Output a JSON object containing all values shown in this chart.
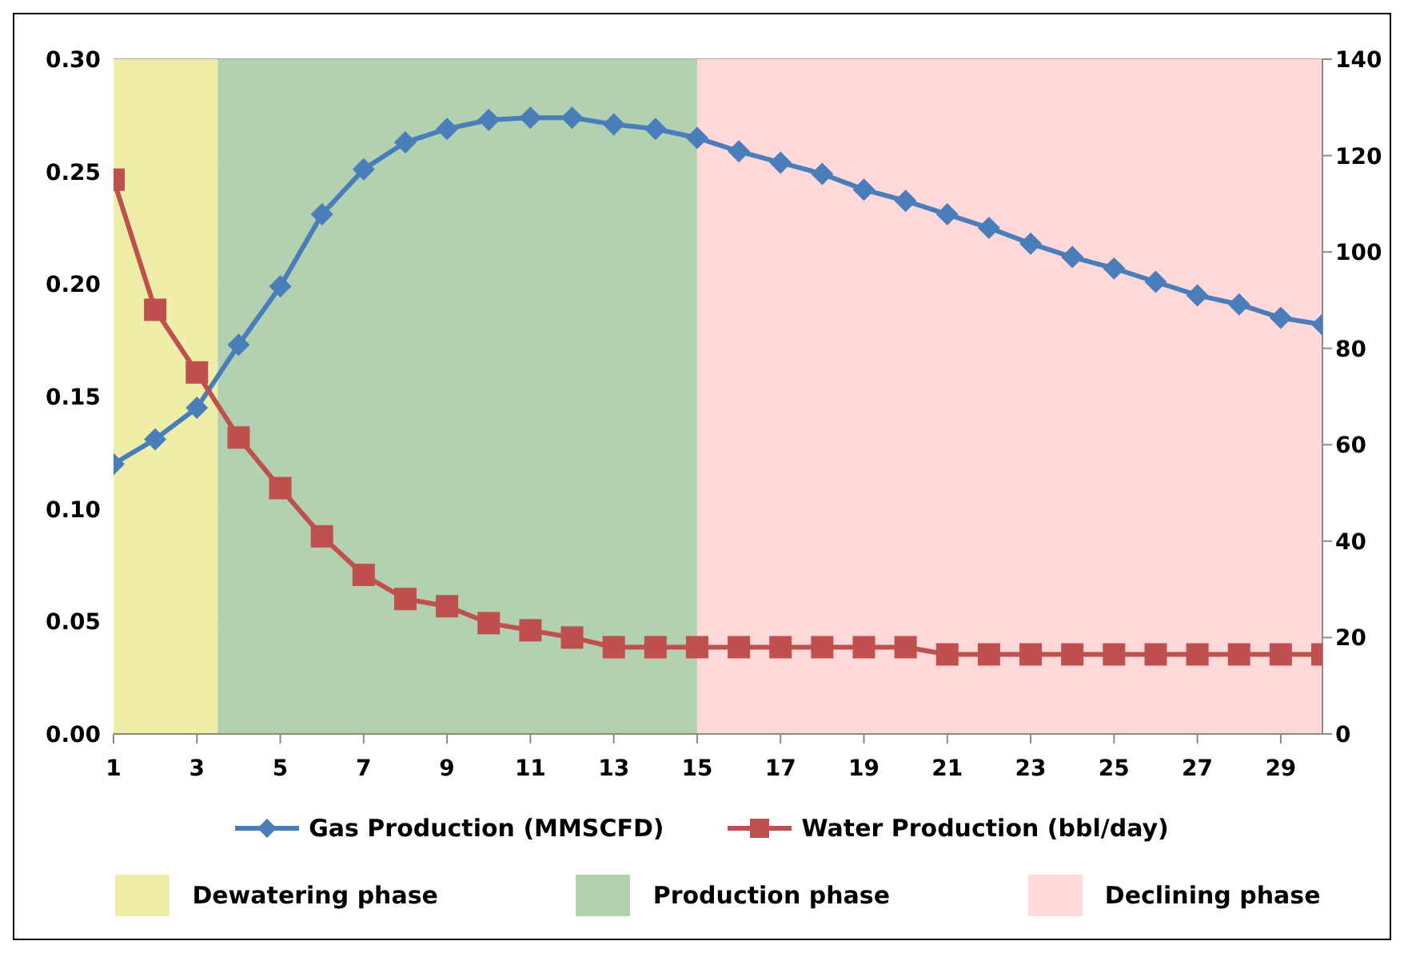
{
  "chart_data": {
    "type": "line",
    "x": [
      1,
      2,
      3,
      4,
      5,
      6,
      7,
      8,
      9,
      10,
      11,
      12,
      13,
      14,
      15,
      16,
      17,
      18,
      19,
      20,
      21,
      22,
      23,
      24,
      25,
      26,
      27,
      28,
      29,
      30
    ],
    "series": [
      {
        "name": "Gas Production (MMSCFD)",
        "color": "#4a7ebb",
        "marker": "diamond",
        "values": [
          0.12,
          0.131,
          0.145,
          0.173,
          0.199,
          0.231,
          0.251,
          0.263,
          0.269,
          0.273,
          0.274,
          0.274,
          0.271,
          0.269,
          0.265,
          0.259,
          0.254,
          0.249,
          0.242,
          0.237,
          0.231,
          0.225,
          0.218,
          0.212,
          0.207,
          0.201,
          0.195,
          0.191,
          0.185,
          0.182
        ]
      },
      {
        "name": "Water Production (bbl/day)",
        "color": "#c0504d",
        "marker": "square",
        "axis": "y2",
        "values": [
          115,
          88,
          75,
          61.5,
          51,
          41,
          33,
          28,
          26.5,
          23,
          21.5,
          20,
          18,
          18,
          18,
          18,
          18,
          18,
          18,
          18,
          16.5,
          16.5,
          16.5,
          16.5,
          16.5,
          16.5,
          16.5,
          16.5,
          16.5,
          16.5
        ]
      }
    ],
    "xlim": [
      1,
      30
    ],
    "xticks": [
      1,
      3,
      5,
      7,
      9,
      11,
      13,
      15,
      17,
      19,
      21,
      23,
      25,
      27,
      29
    ],
    "ylim": [
      0,
      0.3
    ],
    "yticks": [
      {
        "value": 0,
        "label": "0.00"
      },
      {
        "value": 0.05,
        "label": "0.05"
      },
      {
        "value": 0.1,
        "label": "0.10"
      },
      {
        "value": 0.15,
        "label": "0.15"
      },
      {
        "value": 0.2,
        "label": "0.20"
      },
      {
        "value": 0.25,
        "label": "0.25"
      },
      {
        "value": 0.3,
        "label": "0.30"
      }
    ],
    "y2lim": [
      0,
      140
    ],
    "y2ticks": [
      0,
      20,
      40,
      60,
      80,
      100,
      120,
      140
    ],
    "bands": [
      {
        "axis": "x",
        "from": 1,
        "to": 3.5,
        "label": "Dewatering phase",
        "color": "#eeeea8"
      },
      {
        "axis": "x",
        "from": 3.5,
        "to": 15,
        "label": "Production phase",
        "color": "#b2d1b1"
      },
      {
        "axis": "x",
        "from": 15,
        "to": 30,
        "label": "Declining phase",
        "color": "#ffd9d9"
      }
    ],
    "grid": "y",
    "legend": "bottom"
  }
}
